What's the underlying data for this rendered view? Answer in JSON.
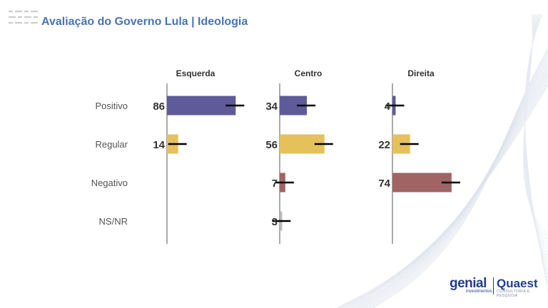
{
  "title": "Avaliação do Governo Lula | Ideologia",
  "chart_data": {
    "type": "bar",
    "orientation": "horizontal",
    "categories": [
      "Positivo",
      "Regular",
      "Negativo",
      "NS/NR"
    ],
    "panels": [
      {
        "name": "Esquerda",
        "values": [
          86,
          14,
          null,
          null
        ]
      },
      {
        "name": "Centro",
        "values": [
          34,
          56,
          7,
          3
        ]
      },
      {
        "name": "Direita",
        "values": [
          4,
          22,
          74,
          null
        ]
      }
    ],
    "category_colors": {
      "Positivo": "#5f5a9a",
      "Regular": "#e5c15c",
      "Negativo": "#a06464",
      "NS/NR": "#b8b8b8"
    },
    "error_bars": true,
    "grid": false,
    "legend": "none"
  },
  "logos": {
    "genial": "genial",
    "genial_sub": "investimentos",
    "quaest": "Quaest",
    "quaest_sub": "CONSULTORIA E PESQUISA"
  }
}
